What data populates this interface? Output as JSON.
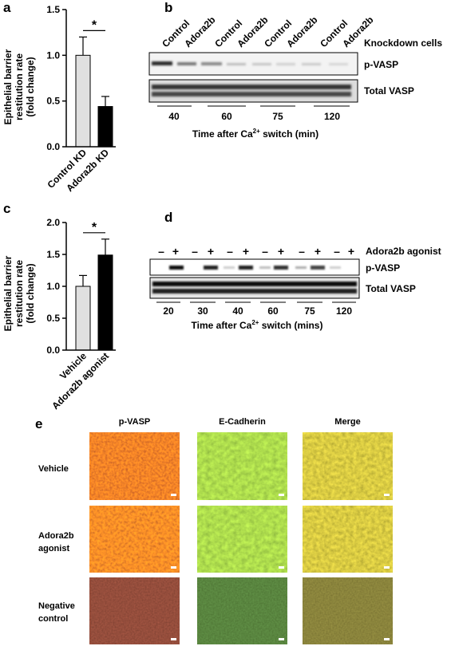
{
  "panels": {
    "a": "a",
    "b": "b",
    "c": "c",
    "d": "d",
    "e": "e"
  },
  "chart_data": [
    {
      "id": "a",
      "type": "bar",
      "categories": [
        "Control KD",
        "Adora2b KD"
      ],
      "values": [
        1.0,
        0.44
      ],
      "errors": [
        0.2,
        0.11
      ],
      "colors": [
        "#e0e0e0",
        "#000000"
      ],
      "ylabel_line1": "Epithelial barrier",
      "ylabel_line2": "restitution rate",
      "ylabel_line3": "(fold change)",
      "ylim": [
        0,
        1.5
      ],
      "yticks": [
        "0.0",
        "0.5",
        "1.0",
        "1.5"
      ],
      "significance": "*"
    },
    {
      "id": "c",
      "type": "bar",
      "categories": [
        "Vehicle",
        "Adora2b agonist"
      ],
      "values": [
        1.0,
        1.49
      ],
      "errors": [
        0.17,
        0.25
      ],
      "colors": [
        "#e0e0e0",
        "#000000"
      ],
      "ylabel_line1": "Epithelial barrier",
      "ylabel_line2": "restitution rate",
      "ylabel_line3": "(fold change)",
      "ylim": [
        0,
        2.0
      ],
      "yticks": [
        "0.0",
        "0.5",
        "1.0",
        "1.5",
        "2.0"
      ],
      "significance": "*"
    }
  ],
  "blot_b": {
    "lanes": [
      "Control",
      "Adora2b",
      "Control",
      "Adora2b",
      "Control",
      "Adora2b",
      "Control",
      "Adora2b"
    ],
    "header": "Knockdown cells",
    "rows": [
      "p-VASP",
      "Total VASP"
    ],
    "timepoints": [
      "40",
      "60",
      "75",
      "120"
    ],
    "xlabel_pre": "Time after Ca",
    "xlabel_sup": "2+",
    "xlabel_post": " switch (min)"
  },
  "blot_d": {
    "lanes": [
      "–",
      "+",
      "–",
      "+",
      "–",
      "+",
      "–",
      "+",
      "–",
      "+",
      "–",
      "+"
    ],
    "header": "Adora2b agonist",
    "rows": [
      "p-VASP",
      "Total VASP"
    ],
    "timepoints": [
      "20",
      "30",
      "40",
      "60",
      "75",
      "120"
    ],
    "xlabel_pre": "Time after Ca",
    "xlabel_sup": "2+",
    "xlabel_post": " switch (mins)"
  },
  "micrographs": {
    "columns": [
      "p-VASP",
      "E-Cadherin",
      "Merge"
    ],
    "rows": [
      {
        "line1": "Vehicle",
        "line2": ""
      },
      {
        "line1": "Adora2b",
        "line2": "agonist"
      },
      {
        "line1": "Negative",
        "line2": "control"
      }
    ]
  }
}
